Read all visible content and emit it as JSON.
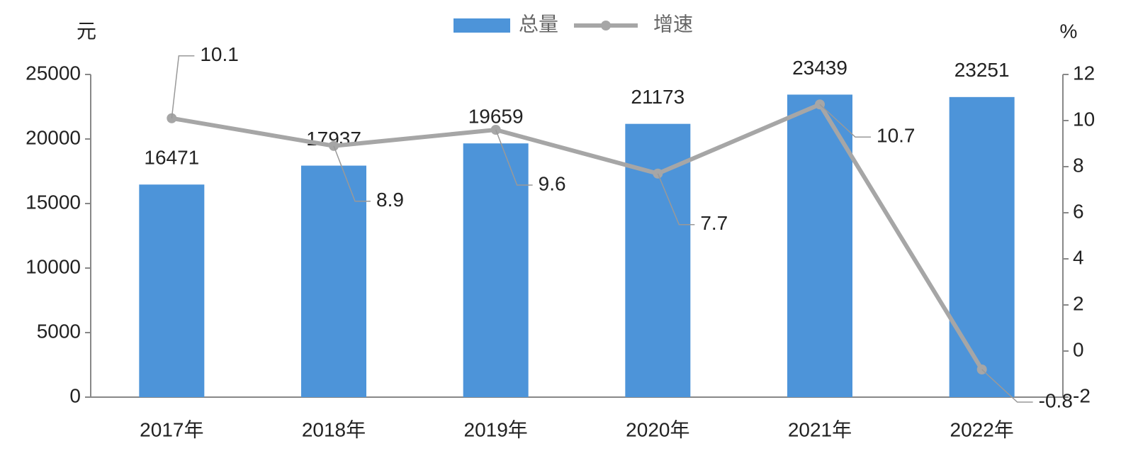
{
  "chart_data": {
    "type": "bar",
    "categories": [
      "2017年",
      "2018年",
      "2019年",
      "2020年",
      "2021年",
      "2022年"
    ],
    "series": [
      {
        "name": "总量",
        "color": "#4d94d9",
        "values": [
          16471,
          17937,
          19659,
          21173,
          23439,
          23251
        ]
      },
      {
        "name": "增速",
        "type": "line",
        "axis": "y2",
        "color": "#a6a6a6",
        "values": [
          10.1,
          8.9,
          9.6,
          7.7,
          10.7,
          -0.8
        ]
      }
    ],
    "ylabel": "元",
    "y2label": "%",
    "ylim": [
      0,
      25000
    ],
    "yticks": [
      0,
      5000,
      10000,
      15000,
      20000,
      25000
    ],
    "y2lim": [
      -2,
      12
    ],
    "y2ticks": [
      -2,
      0,
      2,
      4,
      6,
      8,
      10,
      12
    ],
    "legend": "top"
  }
}
